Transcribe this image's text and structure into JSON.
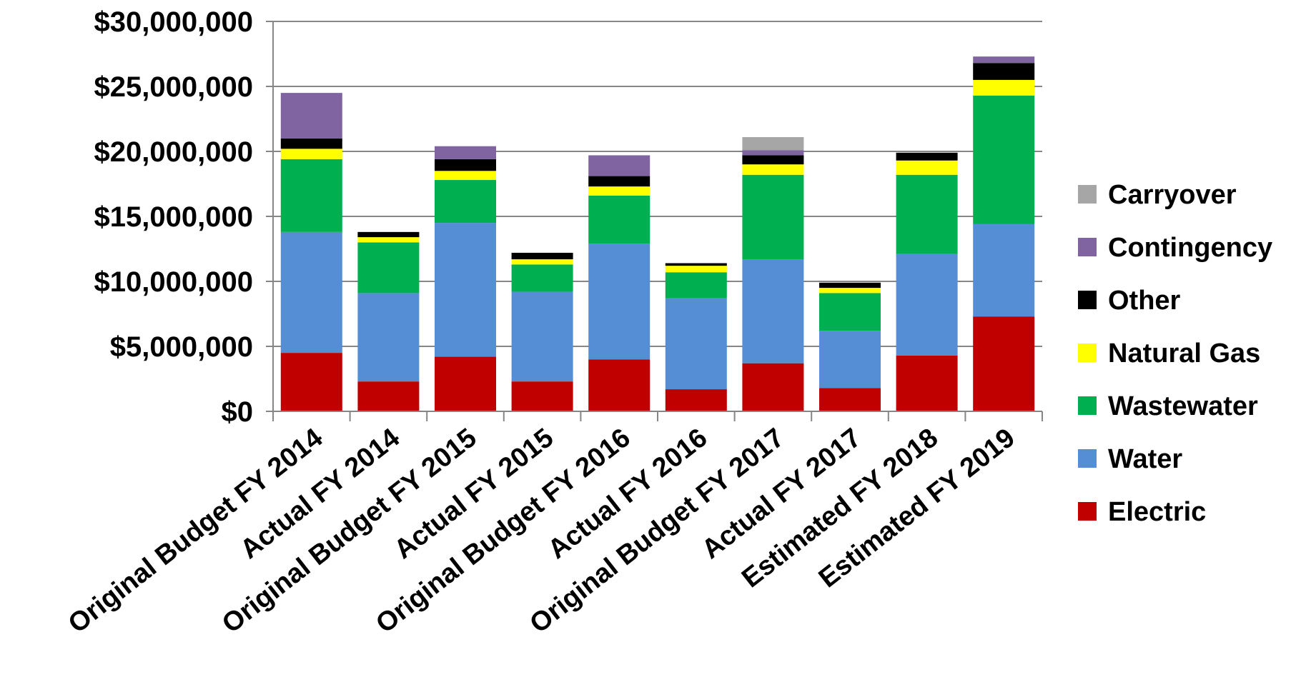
{
  "chart_data": {
    "type": "bar",
    "stacked": true,
    "title": "",
    "xlabel": "",
    "ylabel": "",
    "ylim": [
      0,
      30000000
    ],
    "y_ticks": [
      "$0",
      "$5,000,000",
      "$10,000,000",
      "$15,000,000",
      "$20,000,000",
      "$25,000,000",
      "$30,000,000"
    ],
    "y_tick_values": [
      0,
      5000000,
      10000000,
      15000000,
      20000000,
      25000000,
      30000000
    ],
    "grid": true,
    "legend_position": "right",
    "categories": [
      "Original Budget FY 2014",
      "Actual FY 2014",
      "Original Budget FY 2015",
      "Actual FY 2015",
      "Original Budget FY 2016",
      "Actual FY 2016",
      "Original Budget FY 2017",
      "Actual FY 2017",
      "Estimated FY 2018",
      "Estimated FY 2019"
    ],
    "series": [
      {
        "name": "Electric",
        "color": "#C00000",
        "values": [
          4500000,
          2300000,
          4200000,
          2300000,
          4000000,
          1700000,
          3700000,
          1800000,
          4300000,
          7300000
        ]
      },
      {
        "name": "Water",
        "color": "#558ED5",
        "values": [
          9300000,
          6800000,
          10300000,
          6900000,
          8900000,
          7000000,
          8000000,
          4400000,
          7800000,
          7100000
        ]
      },
      {
        "name": "Wastewater",
        "color": "#00B050",
        "values": [
          5600000,
          3900000,
          3300000,
          2100000,
          3700000,
          2000000,
          6500000,
          2900000,
          6100000,
          9900000
        ]
      },
      {
        "name": "Natural Gas",
        "color": "#FFFF00",
        "values": [
          800000,
          400000,
          700000,
          400000,
          700000,
          500000,
          800000,
          400000,
          1100000,
          1200000
        ]
      },
      {
        "name": "Other",
        "color": "#000000",
        "values": [
          800000,
          400000,
          900000,
          500000,
          800000,
          200000,
          700000,
          400000,
          600000,
          1300000
        ]
      },
      {
        "name": "Contingency",
        "color": "#8064A2",
        "values": [
          3500000,
          0,
          1000000,
          0,
          1600000,
          0,
          400000,
          0,
          0,
          500000
        ]
      },
      {
        "name": "Carryover",
        "color": "#A6A6A6",
        "values": [
          0,
          0,
          0,
          0,
          0,
          0,
          1000000,
          0,
          0,
          0
        ]
      }
    ],
    "legend_order": [
      "Carryover",
      "Contingency",
      "Other",
      "Natural Gas",
      "Wastewater",
      "Water",
      "Electric"
    ]
  }
}
